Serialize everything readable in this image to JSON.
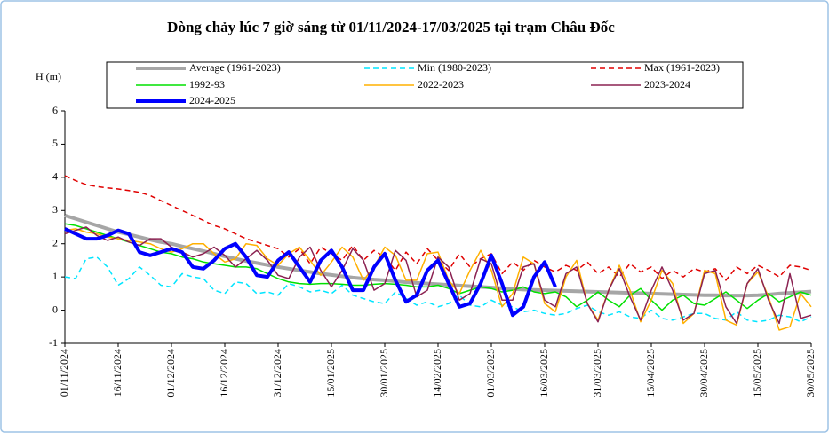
{
  "chart_data": {
    "type": "line",
    "title": "Dòng chảy lúc 7 giờ sáng từ 01/11/2024-17/03/2025 tại trạm Châu Đốc",
    "y_label": "H (m)",
    "legend": "top",
    "xlim": [
      "01/11/2024",
      "30/05/2025"
    ],
    "xticks": [
      "01/11/2024",
      "16/11/2024",
      "01/12/2024",
      "16/12/2024",
      "31/12/2024",
      "15/01/2025",
      "30/01/2025",
      "14/02/2025",
      "01/03/2025",
      "16/03/2025",
      "31/03/2025",
      "15/04/2025",
      "30/04/2025",
      "15/05/2025",
      "30/05/2025"
    ],
    "ylim": [
      -1,
      6
    ],
    "yticks": [
      -1,
      0,
      1,
      2,
      3,
      4,
      5,
      6
    ],
    "x": [
      "01/11/2024",
      "04/11/2024",
      "07/11/2024",
      "10/11/2024",
      "13/11/2024",
      "16/11/2024",
      "19/11/2024",
      "22/11/2024",
      "25/11/2024",
      "28/11/2024",
      "01/12/2024",
      "04/12/2024",
      "07/12/2024",
      "10/12/2024",
      "13/12/2024",
      "16/12/2024",
      "19/12/2024",
      "22/12/2024",
      "25/12/2024",
      "28/12/2024",
      "31/12/2024",
      "03/01/2025",
      "06/01/2025",
      "09/01/2025",
      "12/01/2025",
      "15/01/2025",
      "18/01/2025",
      "21/01/2025",
      "24/01/2025",
      "27/01/2025",
      "30/01/2025",
      "02/02/2025",
      "05/02/2025",
      "08/02/2025",
      "11/02/2025",
      "14/02/2025",
      "17/02/2025",
      "20/02/2025",
      "23/02/2025",
      "26/02/2025",
      "01/03/2025",
      "04/03/2025",
      "07/03/2025",
      "10/03/2025",
      "13/03/2025",
      "16/03/2025",
      "19/03/2025",
      "22/03/2025",
      "25/03/2025",
      "28/03/2025",
      "31/03/2025",
      "03/04/2025",
      "06/04/2025",
      "09/04/2025",
      "12/04/2025",
      "15/04/2025",
      "18/04/2025",
      "21/04/2025",
      "24/04/2025",
      "27/04/2025",
      "30/04/2025",
      "03/05/2025",
      "06/05/2025",
      "09/05/2025",
      "12/05/2025",
      "15/05/2025",
      "18/05/2025",
      "21/05/2025",
      "24/05/2025",
      "27/05/2025",
      "30/05/2025"
    ],
    "series": [
      {
        "name": "Average (1961-2023)",
        "color": "#a6a6a6",
        "line_width": 4,
        "dashed": false,
        "values": [
          2.85,
          2.75,
          2.65,
          2.55,
          2.45,
          2.35,
          2.28,
          2.2,
          2.12,
          2.05,
          2.0,
          1.92,
          1.85,
          1.78,
          1.7,
          1.62,
          1.55,
          1.48,
          1.42,
          1.36,
          1.3,
          1.25,
          1.2,
          1.15,
          1.1,
          1.06,
          1.02,
          0.98,
          0.95,
          0.92,
          0.9,
          0.87,
          0.84,
          0.82,
          0.8,
          0.78,
          0.76,
          0.74,
          0.72,
          0.7,
          0.68,
          0.66,
          0.64,
          0.62,
          0.61,
          0.6,
          0.59,
          0.58,
          0.57,
          0.56,
          0.55,
          0.54,
          0.53,
          0.52,
          0.51,
          0.5,
          0.49,
          0.48,
          0.47,
          0.46,
          0.45,
          0.45,
          0.44,
          0.44,
          0.44,
          0.45,
          0.47,
          0.5,
          0.52,
          0.54,
          0.56
        ]
      },
      {
        "name": "Min (1980-2023)",
        "color": "#00e5ff",
        "line_width": 1.5,
        "dashed": true,
        "values": [
          1.0,
          0.95,
          1.55,
          1.6,
          1.3,
          0.75,
          0.95,
          1.3,
          1.05,
          0.75,
          0.7,
          1.1,
          1.0,
          0.95,
          0.6,
          0.5,
          0.85,
          0.8,
          0.5,
          0.55,
          0.45,
          0.8,
          0.7,
          0.55,
          0.6,
          0.5,
          0.75,
          0.45,
          0.35,
          0.25,
          0.2,
          0.55,
          0.35,
          0.15,
          0.25,
          0.1,
          0.2,
          0.45,
          0.15,
          0.1,
          0.3,
          0.15,
          0.1,
          -0.05,
          0.0,
          -0.1,
          -0.15,
          -0.1,
          0.05,
          0.15,
          -0.05,
          -0.15,
          -0.05,
          -0.2,
          -0.25,
          0.0,
          -0.25,
          -0.3,
          -0.2,
          -0.1,
          -0.1,
          -0.25,
          -0.3,
          -0.05,
          -0.3,
          -0.35,
          -0.3,
          -0.15,
          -0.2,
          -0.35,
          -0.2
        ]
      },
      {
        "name": "Max (1961-2023)",
        "color": "#e00000",
        "line_width": 1.5,
        "dashed": true,
        "values": [
          4.05,
          3.9,
          3.78,
          3.72,
          3.68,
          3.65,
          3.6,
          3.55,
          3.45,
          3.3,
          3.15,
          3.0,
          2.85,
          2.7,
          2.55,
          2.45,
          2.3,
          2.15,
          2.05,
          1.95,
          1.85,
          1.6,
          1.85,
          1.4,
          1.9,
          1.7,
          1.5,
          1.95,
          1.5,
          1.8,
          1.6,
          1.2,
          1.75,
          1.4,
          1.85,
          1.5,
          1.2,
          1.7,
          1.3,
          1.55,
          1.7,
          1.1,
          1.45,
          1.2,
          1.5,
          1.3,
          1.15,
          1.35,
          1.2,
          1.45,
          1.1,
          1.3,
          1.0,
          1.4,
          1.15,
          1.3,
          0.95,
          1.2,
          1.0,
          1.25,
          1.15,
          1.25,
          0.9,
          1.3,
          1.1,
          1.35,
          1.2,
          1.0,
          1.35,
          1.3,
          1.2
        ]
      },
      {
        "name": "1992-93",
        "color": "#00e000",
        "line_width": 1.5,
        "dashed": false,
        "values": [
          2.6,
          2.55,
          2.45,
          2.35,
          2.25,
          2.15,
          2.05,
          1.95,
          1.85,
          1.75,
          1.7,
          1.6,
          1.55,
          1.45,
          1.4,
          1.35,
          1.3,
          1.3,
          1.25,
          1.1,
          0.95,
          0.85,
          0.8,
          0.78,
          0.8,
          0.8,
          0.78,
          0.75,
          0.75,
          0.78,
          0.8,
          0.78,
          0.75,
          0.7,
          0.7,
          0.75,
          0.65,
          0.5,
          0.6,
          0.7,
          0.65,
          0.55,
          0.6,
          0.7,
          0.55,
          0.5,
          0.55,
          0.4,
          0.1,
          0.3,
          0.55,
          0.3,
          0.1,
          0.45,
          0.65,
          0.3,
          0.0,
          0.3,
          0.45,
          0.2,
          0.15,
          0.35,
          0.55,
          0.3,
          0.05,
          0.3,
          0.5,
          0.25,
          0.4,
          0.55,
          0.45
        ]
      },
      {
        "name": "2022-2023",
        "color": "#ffb000",
        "line_width": 1.5,
        "dashed": false,
        "values": [
          2.4,
          2.45,
          2.35,
          2.3,
          2.2,
          2.15,
          2.1,
          2.05,
          2.0,
          1.85,
          1.75,
          1.85,
          2.0,
          2.0,
          1.7,
          1.45,
          1.55,
          2.0,
          1.95,
          1.55,
          1.35,
          1.7,
          1.9,
          1.5,
          1.05,
          1.45,
          1.9,
          1.6,
          0.9,
          1.3,
          1.9,
          1.65,
          0.9,
          0.9,
          1.7,
          1.75,
          0.9,
          0.5,
          1.2,
          1.8,
          1.2,
          0.1,
          0.5,
          1.6,
          1.4,
          0.2,
          -0.05,
          1.0,
          1.5,
          0.2,
          -0.3,
          0.6,
          1.35,
          0.6,
          -0.35,
          0.3,
          1.2,
          0.8,
          -0.4,
          -0.1,
          1.2,
          1.1,
          -0.3,
          -0.45,
          0.8,
          1.15,
          0.4,
          -0.6,
          -0.5,
          0.5,
          0.1
        ]
      },
      {
        "name": "2023-2024",
        "color": "#8b2252",
        "line_width": 1.5,
        "dashed": false,
        "values": [
          2.3,
          2.4,
          2.5,
          2.25,
          2.1,
          2.2,
          2.05,
          1.95,
          2.15,
          2.15,
          1.9,
          1.75,
          1.6,
          1.7,
          1.9,
          1.65,
          1.3,
          1.55,
          1.8,
          1.5,
          1.05,
          0.95,
          1.6,
          1.9,
          1.2,
          0.7,
          1.2,
          1.85,
          1.5,
          0.6,
          0.8,
          1.8,
          1.5,
          0.4,
          0.6,
          1.6,
          1.3,
          0.3,
          0.5,
          1.55,
          1.4,
          0.3,
          0.3,
          1.3,
          1.4,
          0.3,
          0.1,
          1.1,
          1.3,
          0.2,
          -0.35,
          0.6,
          1.25,
          0.4,
          -0.3,
          0.6,
          1.3,
          0.6,
          -0.3,
          -0.1,
          1.1,
          1.2,
          0.1,
          -0.4,
          0.8,
          1.25,
          0.3,
          -0.4,
          1.1,
          -0.25,
          -0.15
        ]
      },
      {
        "name": "2024-2025",
        "color": "#0000ff",
        "line_width": 4,
        "dashed": false,
        "values": [
          2.45,
          2.3,
          2.15,
          2.15,
          2.25,
          2.4,
          2.3,
          1.75,
          1.65,
          1.75,
          1.85,
          1.75,
          1.3,
          1.25,
          1.5,
          1.85,
          2.0,
          1.6,
          1.05,
          1.0,
          1.5,
          1.75,
          1.3,
          0.85,
          1.5,
          1.8,
          1.3,
          0.6,
          0.6,
          1.3,
          1.7,
          0.9,
          0.25,
          0.45,
          1.2,
          1.5,
          0.8,
          0.1,
          0.2,
          0.8,
          1.65,
          0.8,
          -0.15,
          0.1,
          1.0,
          1.45,
          0.7,
          null,
          null,
          null,
          null,
          null,
          null,
          null,
          null,
          null,
          null,
          null,
          null,
          null,
          null,
          null,
          null,
          null,
          null,
          null,
          null,
          null,
          null,
          null,
          null
        ]
      }
    ]
  }
}
